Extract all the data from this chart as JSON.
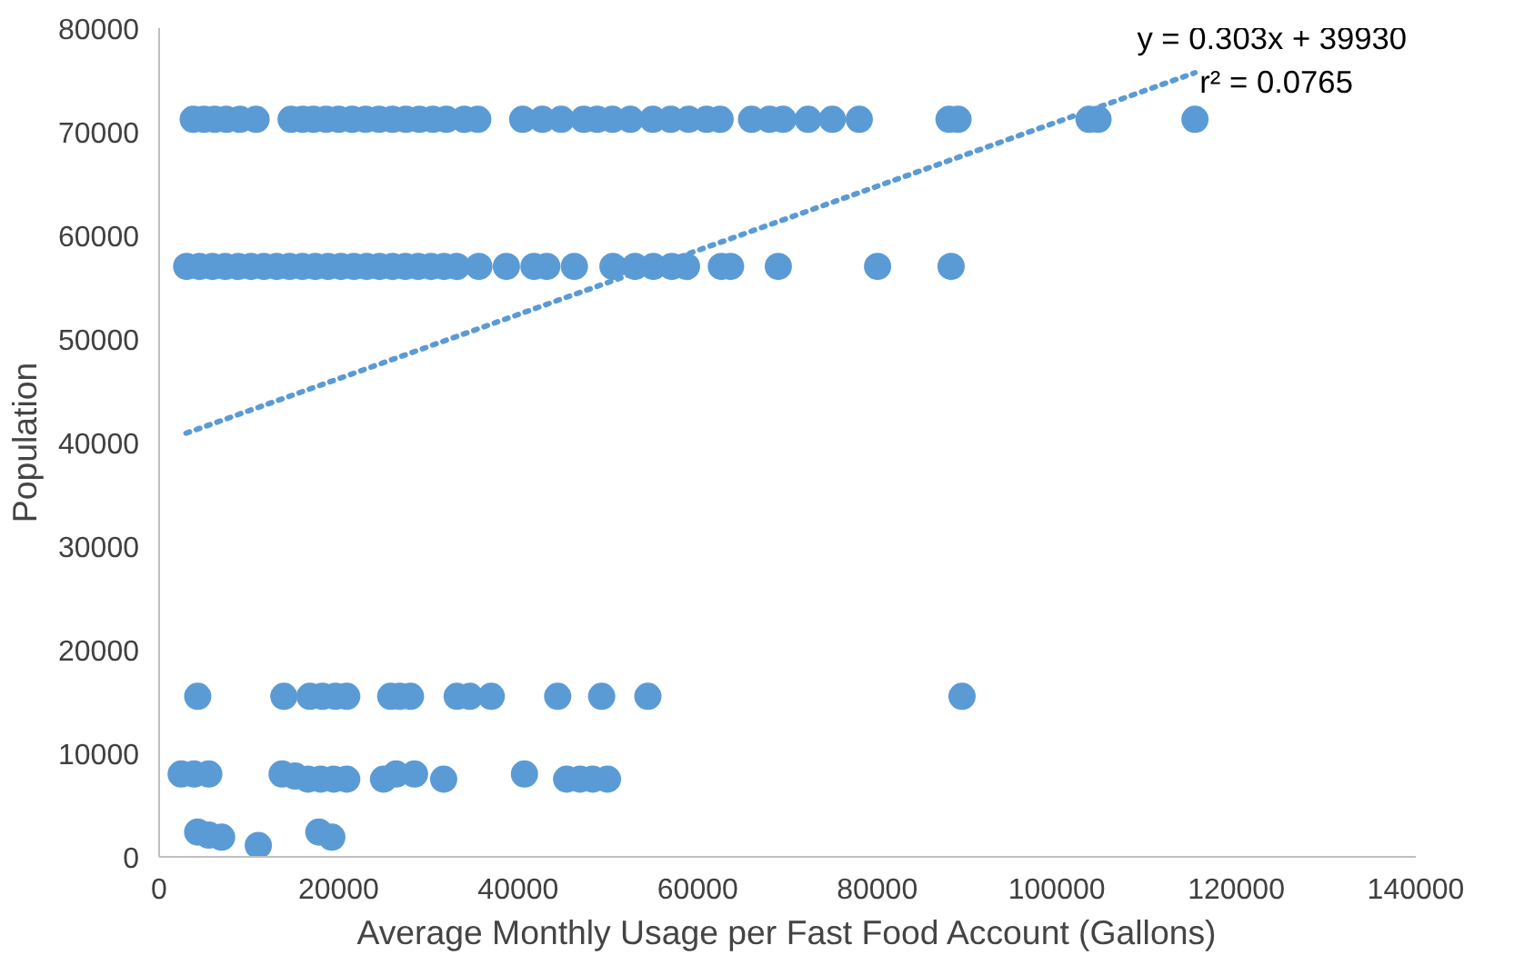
{
  "chart_data": {
    "type": "scatter",
    "xlabel": "Average Monthly Usage per Fast Food Account (Gallons)",
    "ylabel": "Population",
    "xlim": [
      0,
      140000
    ],
    "xticks": [
      0,
      20000,
      40000,
      60000,
      80000,
      100000,
      120000,
      140000
    ],
    "ylim": [
      0,
      80000
    ],
    "yticks": [
      0,
      10000,
      20000,
      30000,
      40000,
      50000,
      60000,
      70000,
      80000
    ],
    "grid": false,
    "marker": "circle",
    "annotations": [
      "y = 0.303x + 39930",
      "r² = 0.0765"
    ],
    "series": [
      {
        "color": "#5b9bd5",
        "x": [
          3800,
          5000,
          6200,
          7500,
          9000,
          10800,
          14700,
          16000,
          17200,
          18600,
          20000,
          21500,
          23000,
          24500,
          26000,
          27500,
          29000,
          30500,
          32000,
          34000,
          35500,
          40500,
          42700,
          44800,
          47300,
          48800,
          50500,
          52500,
          55000,
          57000,
          59000,
          61000,
          62500,
          66000,
          68000,
          69500,
          72300,
          75000,
          78000,
          88000,
          89000,
          103600,
          104600,
          115400,
          3070,
          4500,
          5940,
          7370,
          8800,
          10240,
          11670,
          13100,
          14530,
          15970,
          17400,
          18830,
          20260,
          21700,
          23130,
          24560,
          26000,
          27430,
          28860,
          30300,
          31730,
          33160,
          35620,
          38690,
          41760,
          43190,
          46260,
          50560,
          53020,
          55060,
          57110,
          58750,
          62640,
          63660,
          68980,
          80040,
          88230,
          4300,
          13900,
          16800,
          18200,
          19650,
          20900,
          25800,
          26800,
          28000,
          33200,
          34600,
          37000,
          44400,
          49300,
          54450,
          89450,
          2460,
          3890,
          5530,
          13700,
          15150,
          16580,
          18000,
          19450,
          20900,
          25000,
          26400,
          28450,
          31700,
          40700,
          45400,
          46900,
          48300,
          49950,
          4300,
          5530,
          6960,
          11050,
          17800,
          19240
        ],
        "values": [
          71200,
          71200,
          71200,
          71200,
          71200,
          71200,
          71200,
          71200,
          71200,
          71200,
          71200,
          71200,
          71200,
          71200,
          71200,
          71200,
          71200,
          71200,
          71200,
          71200,
          71200,
          71200,
          71200,
          71200,
          71200,
          71200,
          71200,
          71200,
          71200,
          71200,
          71200,
          71200,
          71200,
          71200,
          71200,
          71200,
          71200,
          71200,
          71200,
          71200,
          71200,
          71200,
          71200,
          71200,
          57000,
          57000,
          57000,
          57000,
          57000,
          57000,
          57000,
          57000,
          57000,
          57000,
          57000,
          57000,
          57000,
          57000,
          57000,
          57000,
          57000,
          57000,
          57000,
          57000,
          57000,
          57000,
          57000,
          57000,
          57000,
          57000,
          57000,
          57000,
          57000,
          57000,
          57000,
          57000,
          57000,
          57000,
          57000,
          57000,
          57000,
          15500,
          15500,
          15500,
          15500,
          15500,
          15500,
          15500,
          15500,
          15500,
          15500,
          15500,
          15500,
          15500,
          15500,
          15500,
          15500,
          8000,
          8000,
          8000,
          8000,
          7800,
          7500,
          7500,
          7500,
          7500,
          7500,
          8000,
          8000,
          7500,
          8000,
          7500,
          7500,
          7500,
          7500,
          2400,
          2100,
          1900,
          1100,
          2400,
          1900
        ]
      },
      {
        "type": "line",
        "marker": "none",
        "color": "#5b9bd5",
        "line_style": "dotted",
        "x": [
          3000,
          115400
        ],
        "values": [
          40900,
          75700
        ]
      }
    ]
  }
}
